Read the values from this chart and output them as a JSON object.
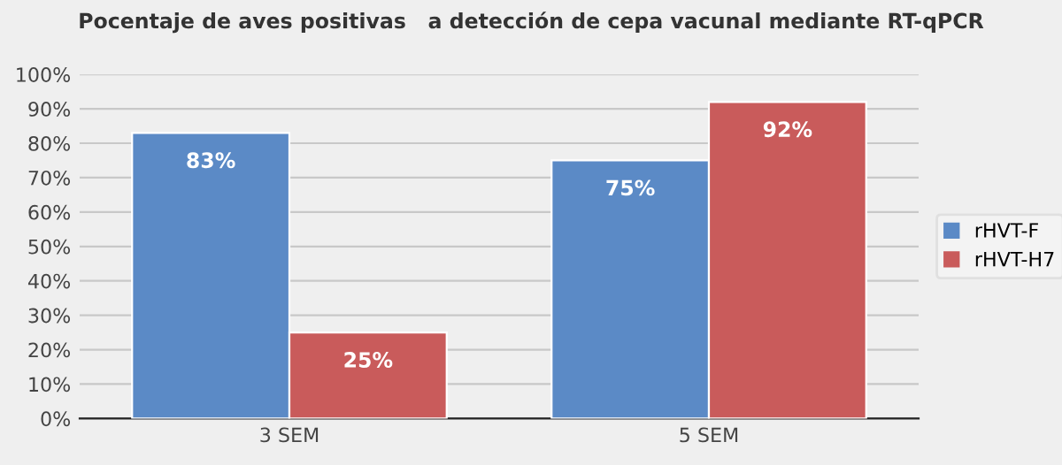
{
  "chart_data": {
    "type": "bar",
    "title": "Pocentaje de aves positivas   a detección de cepa vacunal mediante RT-qPCR",
    "categories": [
      "3 SEM",
      "5 SEM"
    ],
    "series": [
      {
        "name": "rHVT-F",
        "color": "#5b8ac6",
        "values": [
          83,
          75
        ],
        "value_labels": [
          "83%",
          "75%"
        ]
      },
      {
        "name": "rHVT-H7",
        "color": "#c95b5b",
        "values": [
          25,
          92
        ],
        "value_labels": [
          "25%",
          "92%"
        ]
      }
    ],
    "ylim": [
      0,
      100
    ],
    "yticks": [
      {
        "value": 0,
        "label": "0%"
      },
      {
        "value": 10,
        "label": "10%"
      },
      {
        "value": 20,
        "label": "20%"
      },
      {
        "value": 30,
        "label": "30%"
      },
      {
        "value": 40,
        "label": "40%"
      },
      {
        "value": 50,
        "label": "50%"
      },
      {
        "value": 60,
        "label": "60%"
      },
      {
        "value": 70,
        "label": "70%"
      },
      {
        "value": 80,
        "label": "80%"
      },
      {
        "value": 90,
        "label": "90%"
      },
      {
        "value": 100,
        "label": "100%"
      }
    ],
    "grid": "y",
    "legend": "right"
  }
}
